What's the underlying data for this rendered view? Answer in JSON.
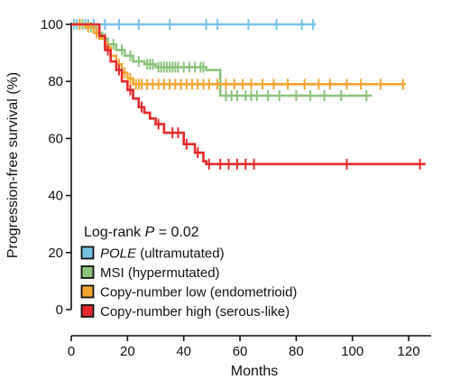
{
  "chart_data": {
    "type": "line",
    "xlabel": "Months",
    "ylabel": "Progression-free survival (%)",
    "xlim": [
      0,
      128
    ],
    "ylim": [
      0,
      100
    ],
    "xticks": [
      0,
      20,
      40,
      60,
      80,
      100,
      120
    ],
    "yticks": [
      0,
      20,
      40,
      60,
      80,
      100
    ],
    "xtick_labels": [
      "0",
      "20",
      "40",
      "60",
      "80",
      "100",
      "120"
    ],
    "ytick_labels": [
      "0",
      "20",
      "40",
      "60",
      "80",
      "100"
    ],
    "grid": false,
    "annotation": {
      "prefix": "Log-rank ",
      "italic": "P",
      "suffix": " = 0.02"
    },
    "legend_position": "bottom-left",
    "series": [
      {
        "name": "POLE",
        "name_suffix": " (ultramutated)",
        "name_italic": true,
        "color": "#74c3e6",
        "steps": [
          [
            0,
            100
          ],
          [
            87,
            100
          ]
        ],
        "censors": [
          1,
          2,
          3,
          4,
          5,
          6,
          8,
          12,
          17,
          24,
          35,
          48,
          52,
          63,
          73,
          82,
          86
        ]
      },
      {
        "name": "MSI",
        "name_suffix": " (hypermutated)",
        "name_italic": false,
        "color": "#8cc47a",
        "steps": [
          [
            0,
            100
          ],
          [
            6,
            99
          ],
          [
            9,
            97
          ],
          [
            11,
            95
          ],
          [
            13,
            93
          ],
          [
            16,
            91
          ],
          [
            19,
            89
          ],
          [
            22,
            87
          ],
          [
            26,
            86
          ],
          [
            30,
            85
          ],
          [
            48,
            84
          ],
          [
            53,
            75
          ],
          [
            107,
            75
          ]
        ],
        "censors": [
          4,
          7,
          12,
          15,
          18,
          21,
          24,
          27,
          28,
          29,
          31,
          32,
          33,
          34,
          35,
          36,
          37,
          38,
          40,
          42,
          44,
          46,
          47,
          55,
          57,
          59,
          62,
          64,
          66,
          70,
          74,
          80,
          85,
          90,
          96,
          105
        ]
      },
      {
        "name": "Copy-number low",
        "name_suffix": " (endometrioid)",
        "name_italic": false,
        "color": "#f4a532",
        "steps": [
          [
            0,
            100
          ],
          [
            5,
            99
          ],
          [
            8,
            97
          ],
          [
            10,
            95
          ],
          [
            12,
            92
          ],
          [
            14,
            89
          ],
          [
            16,
            86
          ],
          [
            18,
            83
          ],
          [
            20,
            81
          ],
          [
            22,
            79
          ],
          [
            119,
            79
          ]
        ],
        "censors": [
          3,
          6,
          9,
          13,
          17,
          19,
          21,
          23,
          24,
          25,
          27,
          29,
          31,
          33,
          35,
          37,
          39,
          41,
          43,
          45,
          47,
          49,
          52,
          55,
          58,
          61,
          64,
          68,
          72,
          77,
          83,
          88,
          92,
          98,
          103,
          110,
          118
        ]
      },
      {
        "name": "Copy-number high",
        "name_suffix": " (serous-like)",
        "name_italic": false,
        "color": "#e52a2a",
        "steps": [
          [
            0,
            100
          ],
          [
            10,
            96
          ],
          [
            12,
            91
          ],
          [
            14,
            87
          ],
          [
            16,
            84
          ],
          [
            18,
            80
          ],
          [
            20,
            77
          ],
          [
            22,
            74
          ],
          [
            24,
            71
          ],
          [
            26,
            69
          ],
          [
            28,
            67
          ],
          [
            30,
            65
          ],
          [
            33,
            62
          ],
          [
            39,
            62
          ],
          [
            40,
            58
          ],
          [
            44,
            55
          ],
          [
            47,
            52
          ],
          [
            48,
            51
          ],
          [
            126,
            51
          ]
        ],
        "censors": [
          13,
          17,
          21,
          25,
          31,
          36,
          38,
          41,
          45,
          49,
          53,
          56,
          59,
          62,
          65,
          98,
          124
        ]
      }
    ]
  }
}
